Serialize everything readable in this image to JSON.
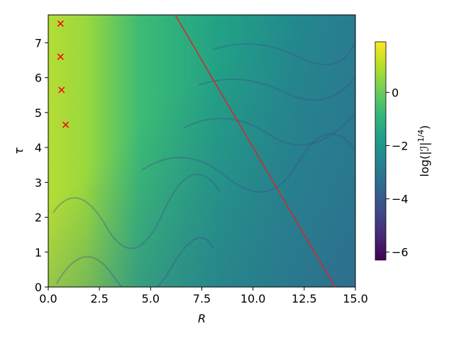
{
  "chart_data": {
    "type": "heatmap",
    "xlabel": "R",
    "ylabel": "τ",
    "xlim": [
      0,
      15
    ],
    "ylim": [
      0,
      7.8
    ],
    "xticks": [
      {
        "value": 0,
        "label": "0.0"
      },
      {
        "value": 2.5,
        "label": "2.5"
      },
      {
        "value": 5,
        "label": "5.0"
      },
      {
        "value": 7.5,
        "label": "7.5"
      },
      {
        "value": 10,
        "label": "10.0"
      },
      {
        "value": 12.5,
        "label": "12.5"
      },
      {
        "value": 15,
        "label": "15.0"
      }
    ],
    "yticks": [
      0,
      1,
      2,
      3,
      4,
      5,
      6,
      7
    ],
    "colormap": "viridis",
    "clim": [
      -6.3,
      1.9
    ],
    "cticks": [
      {
        "value": 0,
        "label": "0"
      },
      {
        "value": -2,
        "label": "−2"
      },
      {
        "value": -4,
        "label": "−4"
      },
      {
        "value": -6,
        "label": "−6"
      }
    ],
    "colorbar_label": {
      "base": "log(|ℐ|",
      "superscript": "1/4",
      "close": ")"
    },
    "overlays": [
      {
        "type": "line",
        "color": "#d62728",
        "x": [
          6.2,
          14.0
        ],
        "y": [
          7.8,
          0
        ]
      },
      {
        "type": "scatter",
        "marker": "x",
        "color": "#ff0000",
        "x": [
          0.6,
          0.6,
          0.65,
          0.85
        ],
        "y": [
          7.55,
          6.6,
          5.65,
          4.65
        ]
      }
    ]
  }
}
